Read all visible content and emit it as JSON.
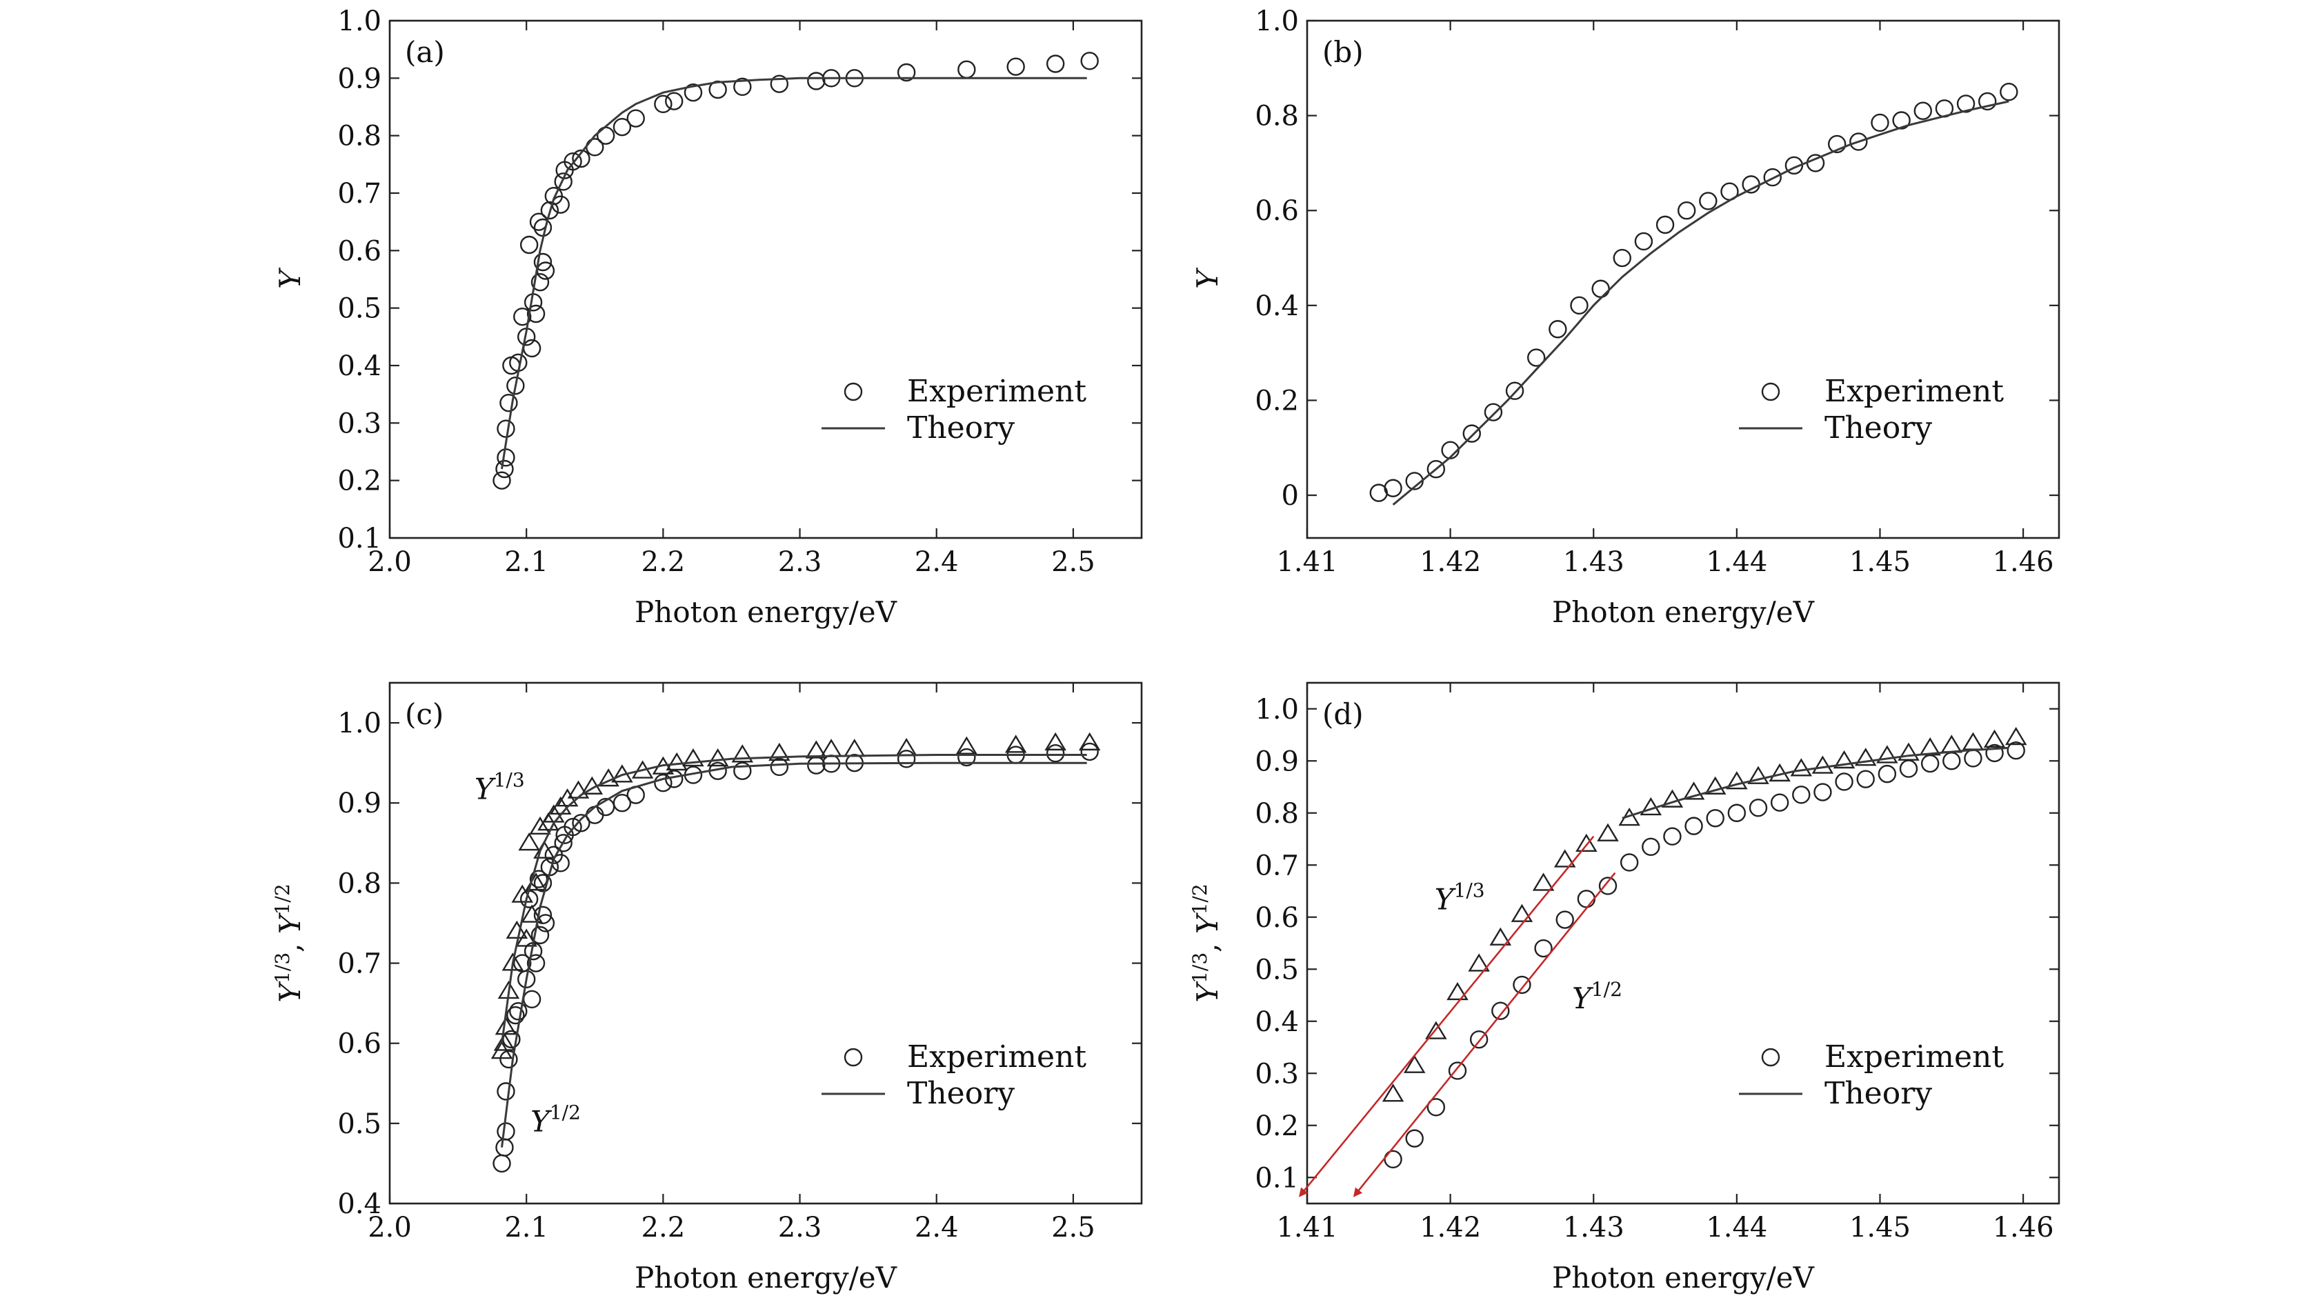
{
  "colors": {
    "ink": "#222222",
    "theory": "#3a3a3a",
    "fit": "#c62828"
  },
  "chart_data": [
    {
      "type": "scatter",
      "panel": "(a)",
      "xlabel": "Photon energy/eV",
      "ylabel": "Y",
      "xlim": [
        2.0,
        2.55
      ],
      "ylim": [
        0.1,
        1.0
      ],
      "xticks": [
        2.0,
        2.1,
        2.2,
        2.3,
        2.4,
        2.5
      ],
      "xtick_labels": [
        "2.0",
        "2.1",
        "2.2",
        "2.3",
        "2.4",
        "2.5"
      ],
      "yticks": [
        0.1,
        0.2,
        0.3,
        0.4,
        0.5,
        0.6,
        0.7,
        0.8,
        0.9,
        1.0
      ],
      "ytick_labels": [
        "0.1",
        "0.2",
        "0.3",
        "0.4",
        "0.5",
        "0.6",
        "0.7",
        "0.8",
        "0.9",
        "1.0"
      ],
      "legend": {
        "position": "bottom-right",
        "entries": [
          "Experiment",
          "Theory"
        ]
      },
      "annotations": [],
      "fit_lines": [],
      "series": [
        {
          "name": "Experiment",
          "kind": "markers",
          "marker": "circle",
          "x": [
            2.082,
            2.084,
            2.085,
            2.085,
            2.087,
            2.089,
            2.092,
            2.094,
            2.097,
            2.1,
            2.102,
            2.104,
            2.105,
            2.107,
            2.109,
            2.11,
            2.112,
            2.112,
            2.114,
            2.117,
            2.12,
            2.125,
            2.127,
            2.128,
            2.134,
            2.14,
            2.15,
            2.158,
            2.17,
            2.18,
            2.2,
            2.208,
            2.222,
            2.24,
            2.258,
            2.285,
            2.312,
            2.323,
            2.34,
            2.378,
            2.422,
            2.458,
            2.487,
            2.512
          ],
          "y": [
            0.2,
            0.22,
            0.24,
            0.29,
            0.335,
            0.4,
            0.365,
            0.405,
            0.485,
            0.45,
            0.61,
            0.43,
            0.51,
            0.49,
            0.65,
            0.545,
            0.58,
            0.64,
            0.565,
            0.67,
            0.695,
            0.68,
            0.72,
            0.74,
            0.755,
            0.76,
            0.78,
            0.8,
            0.815,
            0.83,
            0.855,
            0.86,
            0.875,
            0.88,
            0.885,
            0.89,
            0.895,
            0.9,
            0.9,
            0.91,
            0.915,
            0.92,
            0.925,
            0.93
          ]
        },
        {
          "name": "Theory",
          "kind": "line",
          "x": [
            2.082,
            2.086,
            2.09,
            2.095,
            2.1,
            2.105,
            2.11,
            2.115,
            2.12,
            2.13,
            2.14,
            2.15,
            2.16,
            2.17,
            2.18,
            2.19,
            2.2,
            2.22,
            2.24,
            2.27,
            2.3,
            2.35,
            2.4,
            2.45,
            2.51
          ],
          "y": [
            0.22,
            0.28,
            0.34,
            0.4,
            0.46,
            0.53,
            0.6,
            0.65,
            0.69,
            0.74,
            0.77,
            0.8,
            0.82,
            0.84,
            0.855,
            0.865,
            0.875,
            0.885,
            0.893,
            0.897,
            0.9,
            0.9,
            0.9,
            0.9,
            0.9
          ]
        }
      ]
    },
    {
      "type": "scatter",
      "panel": "(b)",
      "xlabel": "Photon energy/eV",
      "ylabel": "Y",
      "xlim": [
        1.41,
        1.4625
      ],
      "ylim": [
        -0.09,
        1.0
      ],
      "xticks": [
        1.41,
        1.42,
        1.43,
        1.44,
        1.45,
        1.46
      ],
      "xtick_labels": [
        "1.41",
        "1.42",
        "1.43",
        "1.44",
        "1.45",
        "1.46"
      ],
      "yticks": [
        0.0,
        0.2,
        0.4,
        0.6,
        0.8,
        1.0
      ],
      "ytick_labels": [
        "0",
        "0.2",
        "0.4",
        "0.6",
        "0.8",
        "1.0"
      ],
      "legend": {
        "position": "bottom-right",
        "entries": [
          "Experiment",
          "Theory"
        ]
      },
      "annotations": [],
      "fit_lines": [],
      "series": [
        {
          "name": "Experiment",
          "kind": "markers",
          "marker": "circle",
          "x": [
            1.415,
            1.416,
            1.4175,
            1.419,
            1.42,
            1.4215,
            1.423,
            1.4245,
            1.426,
            1.4275,
            1.429,
            1.4305,
            1.432,
            1.4335,
            1.435,
            1.4365,
            1.438,
            1.4395,
            1.441,
            1.4425,
            1.444,
            1.4455,
            1.447,
            1.4485,
            1.45,
            1.4515,
            1.453,
            1.4545,
            1.456,
            1.4575,
            1.459
          ],
          "y": [
            0.005,
            0.015,
            0.03,
            0.055,
            0.095,
            0.13,
            0.175,
            0.22,
            0.29,
            0.35,
            0.4,
            0.435,
            0.5,
            0.535,
            0.57,
            0.6,
            0.62,
            0.64,
            0.655,
            0.67,
            0.695,
            0.7,
            0.74,
            0.745,
            0.785,
            0.79,
            0.81,
            0.815,
            0.825,
            0.83,
            0.85
          ]
        },
        {
          "name": "Theory",
          "kind": "line",
          "x": [
            1.416,
            1.418,
            1.42,
            1.422,
            1.424,
            1.426,
            1.428,
            1.43,
            1.432,
            1.434,
            1.436,
            1.438,
            1.44,
            1.442,
            1.444,
            1.446,
            1.448,
            1.45,
            1.452,
            1.454,
            1.456,
            1.459
          ],
          "y": [
            -0.02,
            0.03,
            0.08,
            0.14,
            0.2,
            0.265,
            0.33,
            0.4,
            0.46,
            0.51,
            0.555,
            0.595,
            0.63,
            0.66,
            0.69,
            0.715,
            0.74,
            0.76,
            0.78,
            0.795,
            0.81,
            0.83
          ]
        }
      ]
    },
    {
      "type": "scatter",
      "panel": "(c)",
      "xlabel": "Photon energy/eV",
      "ylabel_main": "Y",
      "ylabel_sup1": "1/3",
      "ylabel_mid": ", Y",
      "ylabel_sup2": "1/2",
      "xlim": [
        2.0,
        2.55
      ],
      "ylim": [
        0.4,
        1.05
      ],
      "xticks": [
        2.0,
        2.1,
        2.2,
        2.3,
        2.4,
        2.5
      ],
      "xtick_labels": [
        "2.0",
        "2.1",
        "2.2",
        "2.3",
        "2.4",
        "2.5"
      ],
      "yticks": [
        0.4,
        0.5,
        0.6,
        0.7,
        0.8,
        0.9,
        1.0
      ],
      "ytick_labels": [
        "0.4",
        "0.5",
        "0.6",
        "0.7",
        "0.8",
        "0.9",
        "1.0"
      ],
      "legend": {
        "position": "bottom-right",
        "entries": [
          "Experiment",
          "Theory"
        ]
      },
      "annotations": [
        {
          "base": "Y",
          "sup": "1/3",
          "x": 2.062,
          "y": 0.905
        },
        {
          "base": "Y",
          "sup": "1/2",
          "x": 2.103,
          "y": 0.49
        }
      ],
      "fit_lines": [],
      "series": [
        {
          "name": "Experiment",
          "kind": "markers",
          "marker": "triangle",
          "x": [
            2.082,
            2.084,
            2.085,
            2.087,
            2.09,
            2.093,
            2.097,
            2.1,
            2.102,
            2.104,
            2.107,
            2.11,
            2.113,
            2.116,
            2.12,
            2.125,
            2.13,
            2.138,
            2.148,
            2.16,
            2.17,
            2.185,
            2.2,
            2.21,
            2.222,
            2.24,
            2.258,
            2.285,
            2.312,
            2.323,
            2.34,
            2.378,
            2.422,
            2.458,
            2.487,
            2.512
          ],
          "y": [
            0.59,
            0.6,
            0.62,
            0.665,
            0.7,
            0.74,
            0.785,
            0.73,
            0.85,
            0.76,
            0.8,
            0.87,
            0.84,
            0.875,
            0.885,
            0.895,
            0.905,
            0.915,
            0.92,
            0.93,
            0.935,
            0.94,
            0.945,
            0.95,
            0.955,
            0.955,
            0.96,
            0.962,
            0.965,
            0.967,
            0.967,
            0.968,
            0.97,
            0.972,
            0.975,
            0.975
          ]
        },
        {
          "name": "",
          "kind": "markers",
          "marker": "circle",
          "x": [
            2.082,
            2.084,
            2.085,
            2.085,
            2.087,
            2.089,
            2.092,
            2.094,
            2.097,
            2.1,
            2.102,
            2.104,
            2.105,
            2.107,
            2.109,
            2.11,
            2.112,
            2.112,
            2.114,
            2.117,
            2.12,
            2.125,
            2.127,
            2.128,
            2.134,
            2.14,
            2.15,
            2.158,
            2.17,
            2.18,
            2.2,
            2.208,
            2.222,
            2.24,
            2.258,
            2.285,
            2.312,
            2.323,
            2.34,
            2.378,
            2.422,
            2.458,
            2.487,
            2.512
          ],
          "y": [
            0.45,
            0.47,
            0.49,
            0.54,
            0.58,
            0.605,
            0.635,
            0.64,
            0.7,
            0.68,
            0.78,
            0.655,
            0.715,
            0.7,
            0.805,
            0.735,
            0.76,
            0.8,
            0.75,
            0.82,
            0.835,
            0.825,
            0.85,
            0.86,
            0.87,
            0.875,
            0.885,
            0.895,
            0.9,
            0.91,
            0.925,
            0.93,
            0.935,
            0.94,
            0.94,
            0.945,
            0.947,
            0.949,
            0.95,
            0.955,
            0.957,
            0.96,
            0.962,
            0.964
          ]
        },
        {
          "name": "Theory",
          "kind": "line",
          "x": [
            2.082,
            2.09,
            2.1,
            2.11,
            2.12,
            2.13,
            2.14,
            2.15,
            2.17,
            2.2,
            2.25,
            2.3,
            2.4,
            2.51
          ],
          "y": [
            0.6,
            0.7,
            0.78,
            0.84,
            0.875,
            0.895,
            0.91,
            0.92,
            0.935,
            0.947,
            0.955,
            0.958,
            0.96,
            0.96
          ]
        },
        {
          "name": "",
          "kind": "line",
          "x": [
            2.082,
            2.09,
            2.1,
            2.11,
            2.12,
            2.13,
            2.14,
            2.15,
            2.17,
            2.2,
            2.25,
            2.3,
            2.4,
            2.51
          ],
          "y": [
            0.47,
            0.58,
            0.68,
            0.77,
            0.83,
            0.86,
            0.88,
            0.895,
            0.915,
            0.93,
            0.945,
            0.949,
            0.95,
            0.95
          ]
        }
      ]
    },
    {
      "type": "scatter",
      "panel": "(d)",
      "xlabel": "Photon energy/eV",
      "ylabel_main": "Y",
      "ylabel_sup1": "1/3",
      "ylabel_mid": ", Y",
      "ylabel_sup2": "1/2",
      "xlim": [
        1.41,
        1.4625
      ],
      "ylim": [
        0.05,
        1.05
      ],
      "xticks": [
        1.41,
        1.42,
        1.43,
        1.44,
        1.45,
        1.46
      ],
      "xtick_labels": [
        "1.41",
        "1.42",
        "1.43",
        "1.44",
        "1.45",
        "1.46"
      ],
      "yticks": [
        0.1,
        0.2,
        0.3,
        0.4,
        0.5,
        0.6,
        0.7,
        0.8,
        0.9,
        1.0
      ],
      "ytick_labels": [
        "0.1",
        "0.2",
        "0.3",
        "0.4",
        "0.5",
        "0.6",
        "0.7",
        "0.8",
        "0.9",
        "1.0"
      ],
      "legend": {
        "position": "bottom-right",
        "entries": [
          "Experiment",
          "Theory"
        ]
      },
      "annotations": [
        {
          "base": "Y",
          "sup": "1/3",
          "x": 1.4189,
          "y": 0.615
        },
        {
          "base": "Y",
          "sup": "1/2",
          "x": 1.4285,
          "y": 0.425
        }
      ],
      "fit_lines": [
        {
          "x1": 1.4095,
          "y1": 0.065,
          "x2": 1.43,
          "y2": 0.755
        },
        {
          "x1": 1.4133,
          "y1": 0.065,
          "x2": 1.4315,
          "y2": 0.685
        }
      ],
      "series": [
        {
          "name": "Experiment",
          "kind": "markers",
          "marker": "triangle",
          "x": [
            1.416,
            1.4175,
            1.419,
            1.4205,
            1.422,
            1.4235,
            1.425,
            1.4265,
            1.428,
            1.4295,
            1.431,
            1.4325,
            1.434,
            1.4355,
            1.437,
            1.4385,
            1.44,
            1.4415,
            1.443,
            1.4445,
            1.446,
            1.4475,
            1.449,
            1.4505,
            1.452,
            1.4535,
            1.455,
            1.4565,
            1.458,
            1.4595
          ],
          "y": [
            0.26,
            0.315,
            0.38,
            0.455,
            0.51,
            0.56,
            0.605,
            0.665,
            0.71,
            0.74,
            0.76,
            0.79,
            0.81,
            0.825,
            0.84,
            0.85,
            0.86,
            0.87,
            0.875,
            0.885,
            0.89,
            0.9,
            0.905,
            0.91,
            0.915,
            0.925,
            0.93,
            0.935,
            0.94,
            0.945
          ]
        },
        {
          "name": "",
          "kind": "markers",
          "marker": "circle",
          "x": [
            1.416,
            1.4175,
            1.419,
            1.4205,
            1.422,
            1.4235,
            1.425,
            1.4265,
            1.428,
            1.4295,
            1.431,
            1.4325,
            1.434,
            1.4355,
            1.437,
            1.4385,
            1.44,
            1.4415,
            1.443,
            1.4445,
            1.446,
            1.4475,
            1.449,
            1.4505,
            1.452,
            1.4535,
            1.455,
            1.4565,
            1.458,
            1.4595
          ],
          "y": [
            0.135,
            0.175,
            0.235,
            0.305,
            0.365,
            0.42,
            0.47,
            0.54,
            0.595,
            0.635,
            0.66,
            0.705,
            0.735,
            0.755,
            0.775,
            0.79,
            0.8,
            0.81,
            0.82,
            0.835,
            0.84,
            0.86,
            0.865,
            0.875,
            0.885,
            0.895,
            0.9,
            0.905,
            0.915,
            0.92
          ]
        },
        {
          "name": "Theory",
          "kind": "line",
          "x": [
            1.432,
            1.436,
            1.44,
            1.444,
            1.448,
            1.452,
            1.456,
            1.459
          ],
          "y": [
            0.79,
            0.825,
            0.855,
            0.88,
            0.895,
            0.91,
            0.92,
            0.925
          ]
        }
      ]
    }
  ]
}
